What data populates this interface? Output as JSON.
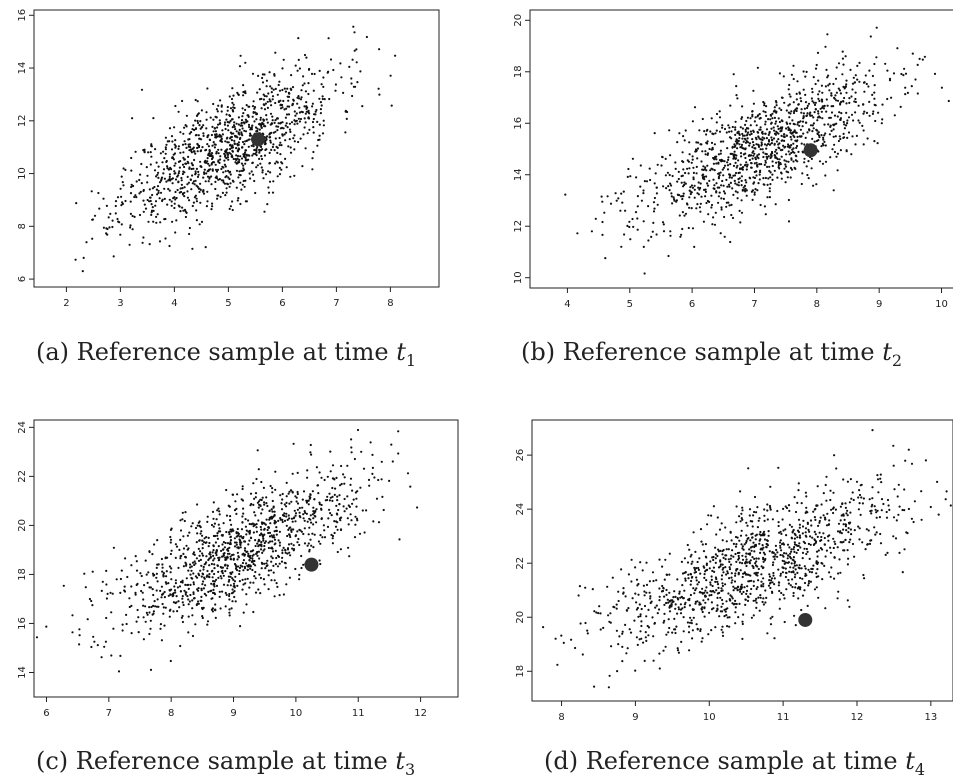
{
  "chart_data": [
    {
      "type": "scatter",
      "caption": {
        "prefix": "(a) Reference sample at time ",
        "var": "t",
        "sub": "1"
      },
      "xlim": [
        1.4,
        8.9
      ],
      "ylim": [
        5.7,
        16.2
      ],
      "xticks": [
        2,
        3,
        4,
        5,
        6,
        7,
        8
      ],
      "yticks": [
        6,
        8,
        10,
        12,
        14,
        16
      ],
      "cloud": {
        "n": 1200,
        "mean": [
          5.0,
          11.0
        ],
        "sd": [
          1.0,
          1.5
        ],
        "corr": 0.72,
        "seed": 11
      },
      "highlight": {
        "x": 5.55,
        "y": 11.3
      }
    },
    {
      "type": "scatter",
      "caption": {
        "prefix": "(b) Reference sample at time ",
        "var": "t",
        "sub": "2"
      },
      "xlim": [
        3.4,
        10.2
      ],
      "ylim": [
        9.6,
        20.4
      ],
      "xticks": [
        4,
        5,
        6,
        7,
        8,
        9,
        10
      ],
      "yticks": [
        10,
        12,
        14,
        16,
        18,
        20
      ],
      "cloud": {
        "n": 1200,
        "mean": [
          7.1,
          15.0
        ],
        "sd": [
          1.0,
          1.5
        ],
        "corr": 0.72,
        "seed": 23
      },
      "highlight": {
        "x": 7.9,
        "y": 14.95
      }
    },
    {
      "type": "scatter",
      "caption": {
        "prefix": "(c) Reference sample at time ",
        "var": "t",
        "sub": "3"
      },
      "xlim": [
        5.8,
        12.6
      ],
      "ylim": [
        13.0,
        24.3
      ],
      "xticks": [
        6,
        7,
        8,
        9,
        10,
        11,
        12
      ],
      "yticks": [
        14,
        16,
        18,
        20,
        22,
        24
      ],
      "cloud": {
        "n": 1200,
        "mean": [
          9.1,
          19.0
        ],
        "sd": [
          1.0,
          1.6
        ],
        "corr": 0.72,
        "seed": 37
      },
      "highlight": {
        "x": 10.25,
        "y": 18.4
      }
    },
    {
      "type": "scatter",
      "caption": {
        "prefix": "(d) Reference sample at time ",
        "var": "t",
        "sub": "4"
      },
      "xlim": [
        7.6,
        13.3
      ],
      "ylim": [
        16.9,
        27.3
      ],
      "xticks": [
        8,
        9,
        10,
        11,
        12,
        13
      ],
      "yticks": [
        18,
        20,
        22,
        24,
        26
      ],
      "cloud": {
        "n": 1200,
        "mean": [
          10.6,
          21.9
        ],
        "sd": [
          1.0,
          1.5
        ],
        "corr": 0.72,
        "seed": 41
      },
      "highlight": {
        "x": 11.3,
        "y": 19.9
      }
    }
  ]
}
